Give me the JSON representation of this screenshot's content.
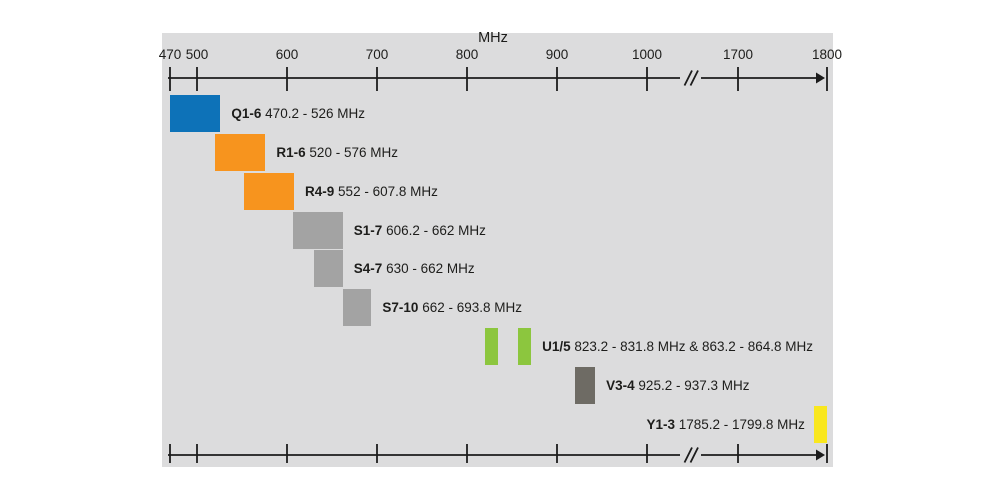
{
  "colors": {
    "page_background": "#ffffff",
    "chart_background": "#dcdcdd",
    "axis": "#1c1c1c",
    "text": "#1d1d1b"
  },
  "chart_data": {
    "type": "bar",
    "subtype": "horizontal-frequency-range-chart",
    "unit": "MHz",
    "axis_ticks": [
      470,
      500,
      600,
      700,
      800,
      900,
      1000,
      1700,
      1800
    ],
    "axis_break_between": [
      1000,
      1700
    ],
    "axis_range_mhz": [
      470,
      1800
    ],
    "bands": [
      {
        "name": "Q1-6",
        "range_text": "470.2 - 526 MHz",
        "segments": [
          [
            470.2,
            526
          ]
        ],
        "color": "#0d72b8"
      },
      {
        "name": "R1-6",
        "range_text": "520 - 576 MHz",
        "segments": [
          [
            520,
            576
          ]
        ],
        "color": "#f7941e"
      },
      {
        "name": "R4-9",
        "range_text": "552 - 607.8 MHz",
        "segments": [
          [
            552,
            607.8
          ]
        ],
        "color": "#f7941e"
      },
      {
        "name": "S1-7",
        "range_text": "606.2 - 662 MHz",
        "segments": [
          [
            606.2,
            662
          ]
        ],
        "color": "#a3a3a3"
      },
      {
        "name": "S4-7",
        "range_text": "630 - 662 MHz",
        "segments": [
          [
            630,
            662
          ]
        ],
        "color": "#a3a3a3"
      },
      {
        "name": "S7-10",
        "range_text": "662 - 693.8 MHz",
        "segments": [
          [
            662,
            693.8
          ]
        ],
        "color": "#a3a3a3"
      },
      {
        "name": "U1/5",
        "range_text": "823.2 - 831.8 MHz & 863.2 - 864.8 MHz",
        "segments": [
          [
            823.2,
            831.8
          ],
          [
            863.2,
            864.8
          ]
        ],
        "color": "#8cc63e"
      },
      {
        "name": "V3-4",
        "range_text": "925.2 - 937.3 MHz",
        "segments": [
          [
            925.2,
            937.3
          ]
        ],
        "color": "#6e6b64",
        "textured": true
      },
      {
        "name": "Y1-3",
        "range_text": "1785.2 - 1799.8 MHz",
        "segments": [
          [
            1785.2,
            1799.8
          ]
        ],
        "color": "#f9e71e",
        "label_side": "left"
      }
    ]
  }
}
